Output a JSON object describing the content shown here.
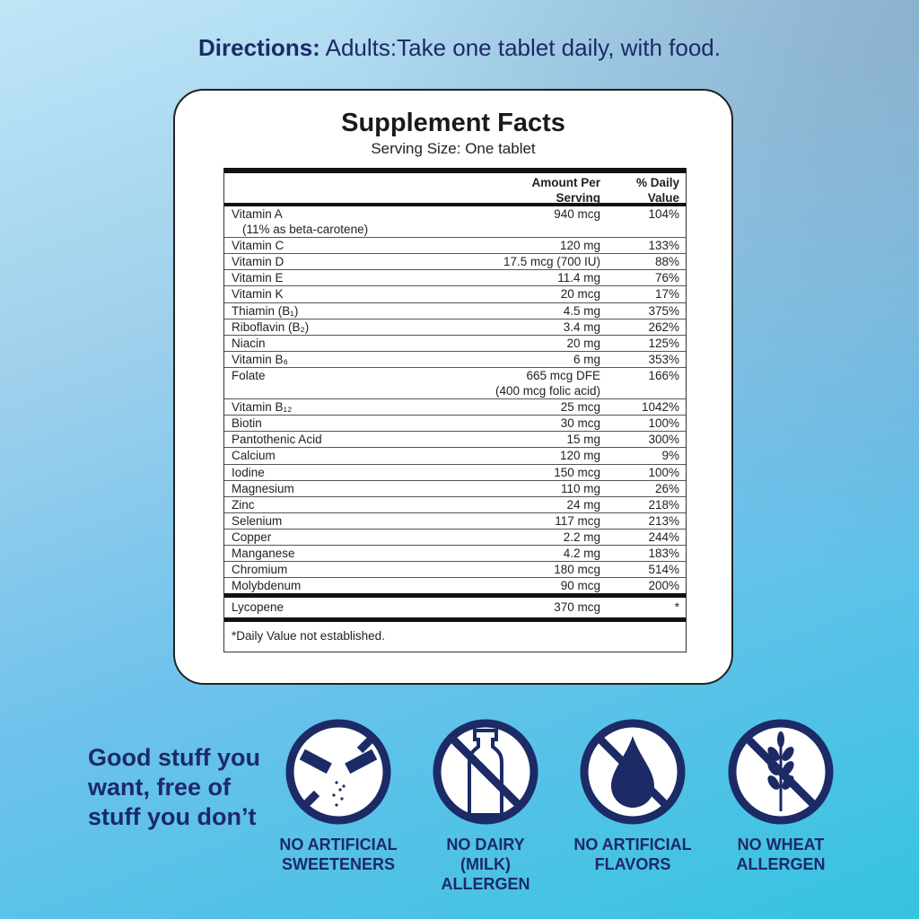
{
  "directions": {
    "label": "Directions:",
    "text": "Adults:Take one tablet daily, with food."
  },
  "facts": {
    "title": "Supplement Facts",
    "serving_size": "Serving Size: One tablet",
    "headers": {
      "amount_l1": "Amount Per",
      "amount_l2": "Serving",
      "dv_l1": "% Daily",
      "dv_l2": "Value"
    },
    "rows": [
      {
        "name": "Vitamin A",
        "sub": "(11% as beta-carotene)",
        "amount": "940 mcg",
        "dv": "104%"
      },
      {
        "name": "Vitamin C",
        "amount": "120 mg",
        "dv": "133%"
      },
      {
        "name": "Vitamin D",
        "amount": "17.5 mcg (700 IU)",
        "dv": "88%"
      },
      {
        "name": "Vitamin E",
        "amount": "11.4 mg",
        "dv": "76%"
      },
      {
        "name": "Vitamin K",
        "amount": "20 mcg",
        "dv": "17%"
      },
      {
        "name": "Thiamin (B₁)",
        "amount": "4.5 mg",
        "dv": "375%"
      },
      {
        "name": "Riboflavin (B₂)",
        "amount": "3.4 mg",
        "dv": "262%"
      },
      {
        "name": "Niacin",
        "amount": "20 mg",
        "dv": "125%"
      },
      {
        "name": "Vitamin B₆",
        "amount": "6 mg",
        "dv": "353%"
      },
      {
        "name": "Folate",
        "amount": "665 mcg DFE",
        "amount2": "(400 mcg folic acid)",
        "dv": "166%"
      },
      {
        "name": "Vitamin B₁₂",
        "amount": "25 mcg",
        "dv": "1042%"
      },
      {
        "name": "Biotin",
        "amount": "30 mcg",
        "dv": "100%"
      },
      {
        "name": "Pantothenic Acid",
        "amount": "15 mg",
        "dv": "300%"
      },
      {
        "name": "Calcium",
        "amount": "120 mg",
        "dv": "9%"
      },
      {
        "name": "Iodine",
        "amount": "150 mcg",
        "dv": "100%"
      },
      {
        "name": "Magnesium",
        "amount": "110 mg",
        "dv": "26%"
      },
      {
        "name": "Zinc",
        "amount": "24 mg",
        "dv": "218%"
      },
      {
        "name": "Selenium",
        "amount": "117 mcg",
        "dv": "213%"
      },
      {
        "name": "Copper",
        "amount": "2.2 mg",
        "dv": "244%"
      },
      {
        "name": "Manganese",
        "amount": "4.2 mg",
        "dv": "183%"
      },
      {
        "name": "Chromium",
        "amount": "180 mcg",
        "dv": "514%"
      },
      {
        "name": "Molybdenum",
        "amount": "90 mcg",
        "dv": "200%"
      }
    ],
    "extra": {
      "name": "Lycopene",
      "amount": "370 mcg",
      "dv": "*"
    },
    "footnote": "*Daily Value not established."
  },
  "tagline": "Good stuff you want, free of stuff you don’t",
  "badges": [
    {
      "icon": "no-sweetener-icon",
      "label": "NO ARTIFICIAL SWEETENERS"
    },
    {
      "icon": "no-milk-icon",
      "label": "NO DAIRY (MILK) ALLERGEN"
    },
    {
      "icon": "no-flavor-drop-icon",
      "label": "NO ARTIFICIAL FLAVORS"
    },
    {
      "icon": "no-wheat-icon",
      "label": "NO WHEAT ALLERGEN"
    }
  ],
  "colors": {
    "navy": "#1c2a66",
    "accent_bg": "#35c3e0"
  }
}
